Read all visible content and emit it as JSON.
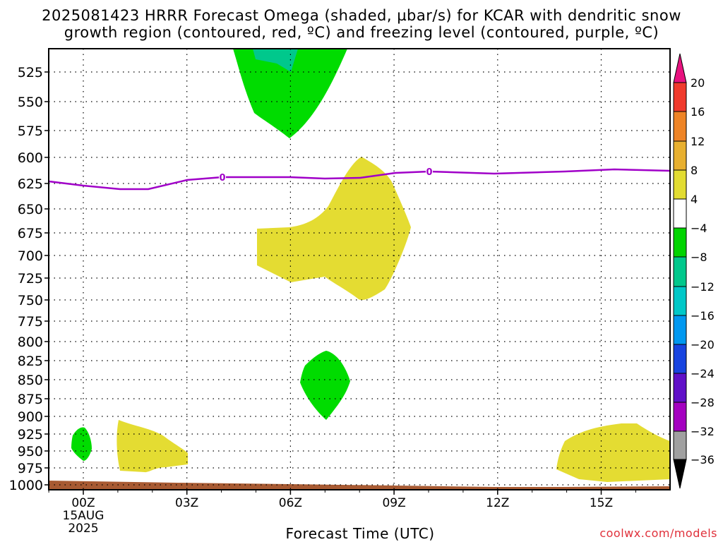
{
  "title_line1": "2025081423 HRRR Forecast Omega (shaded, µbar/s) for KCAR with dendritic snow",
  "title_line2": "growth region (contoured, red, ºC) and freezing level (contoured, purple, ºC)",
  "xlabel": "Forecast Time (UTC)",
  "credit": "coolwx.com/models",
  "y_ticks": [
    "525",
    "550",
    "575",
    "600",
    "625",
    "650",
    "675",
    "700",
    "725",
    "750",
    "775",
    "800",
    "825",
    "850",
    "875",
    "900",
    "925",
    "950",
    "975",
    "1000"
  ],
  "x_ticks": [
    "00Z",
    "03Z",
    "06Z",
    "09Z",
    "12Z",
    "15Z"
  ],
  "date_labels": [
    "15AUG",
    "2025"
  ],
  "freezing_contour_labels": [
    "0",
    "0"
  ],
  "colorbar": {
    "labels": [
      "20",
      "16",
      "12",
      "8",
      "4",
      "-4",
      "-8",
      "-12",
      "-16",
      "-20",
      "-24",
      "-28",
      "-32",
      "-36"
    ],
    "colors": [
      "#e8127f",
      "#f03a2c",
      "#ee8426",
      "#e8b030",
      "#e2dc32",
      "#ffffff",
      "#00d400",
      "#00c88c",
      "#00c8c8",
      "#0098f0",
      "#1844e0",
      "#6010c8",
      "#a400c0",
      "#a0a0a0",
      "#000000"
    ]
  },
  "fill_colors": {
    "green": "#00dc00",
    "teal": "#00c88c",
    "yellow": "#e4dc32",
    "terrain": "#a85a32",
    "freezing": "#a000c8"
  },
  "chart_data": {
    "type": "heatmap",
    "title": "2025081423 HRRR Forecast Omega (shaded, µbar/s) for KCAR with dendritic snow growth region (contoured, red, ºC) and freezing level (contoured, purple, ºC)",
    "xlabel": "Forecast Time (UTC)",
    "ylabel": "",
    "xlim": [
      "2025-08-14T23Z",
      "2025-08-15T17Z"
    ],
    "ylim": [
      1000,
      500
    ],
    "y_scale": "pressure (hPa)",
    "grid": true,
    "freezing_level_0C_hPa": [
      {
        "t": "2025-08-14T23Z",
        "p": 624
      },
      {
        "t": "2025-08-15T00Z",
        "p": 627
      },
      {
        "t": "2025-08-15T02Z",
        "p": 631
      },
      {
        "t": "2025-08-15T03Z",
        "p": 624
      },
      {
        "t": "2025-08-15T04Z",
        "p": 620
      },
      {
        "t": "2025-08-15T06Z",
        "p": 619
      },
      {
        "t": "2025-08-15T08Z",
        "p": 620
      },
      {
        "t": "2025-08-15T09Z",
        "p": 616
      },
      {
        "t": "2025-08-15T10Z",
        "p": 615
      },
      {
        "t": "2025-08-15T12Z",
        "p": 616
      },
      {
        "t": "2025-08-15T15Z",
        "p": 613
      },
      {
        "t": "2025-08-15T17Z",
        "p": 614
      }
    ],
    "omega_regions": [
      {
        "range": "-8 to -4",
        "desc": "upward motion",
        "time": "05Z-07Z",
        "p_range": [
          500,
          582
        ]
      },
      {
        "range": "-12 to -8",
        "desc": "upward motion",
        "time": "05.5Z-06Z",
        "p_range": [
          500,
          520
        ]
      },
      {
        "range": "4 to 8",
        "desc": "sinking",
        "time": "05Z-09Z",
        "p_range": [
          602,
          748
        ]
      },
      {
        "range": "-8 to -4",
        "desc": "upward motion",
        "time": "06.5Z-07.5Z",
        "p_range": [
          810,
          905
        ]
      },
      {
        "range": "-8 to -4",
        "desc": "upward motion",
        "time": "00Z",
        "p_range": [
          918,
          970
        ]
      },
      {
        "range": "4 to 8",
        "desc": "sinking",
        "time": "01Z-03Z",
        "p_range": [
          906,
          980
        ]
      },
      {
        "range": "4 to 8",
        "desc": "sinking",
        "time": "14Z-17Z",
        "p_range": [
          910,
          980
        ]
      }
    ]
  }
}
